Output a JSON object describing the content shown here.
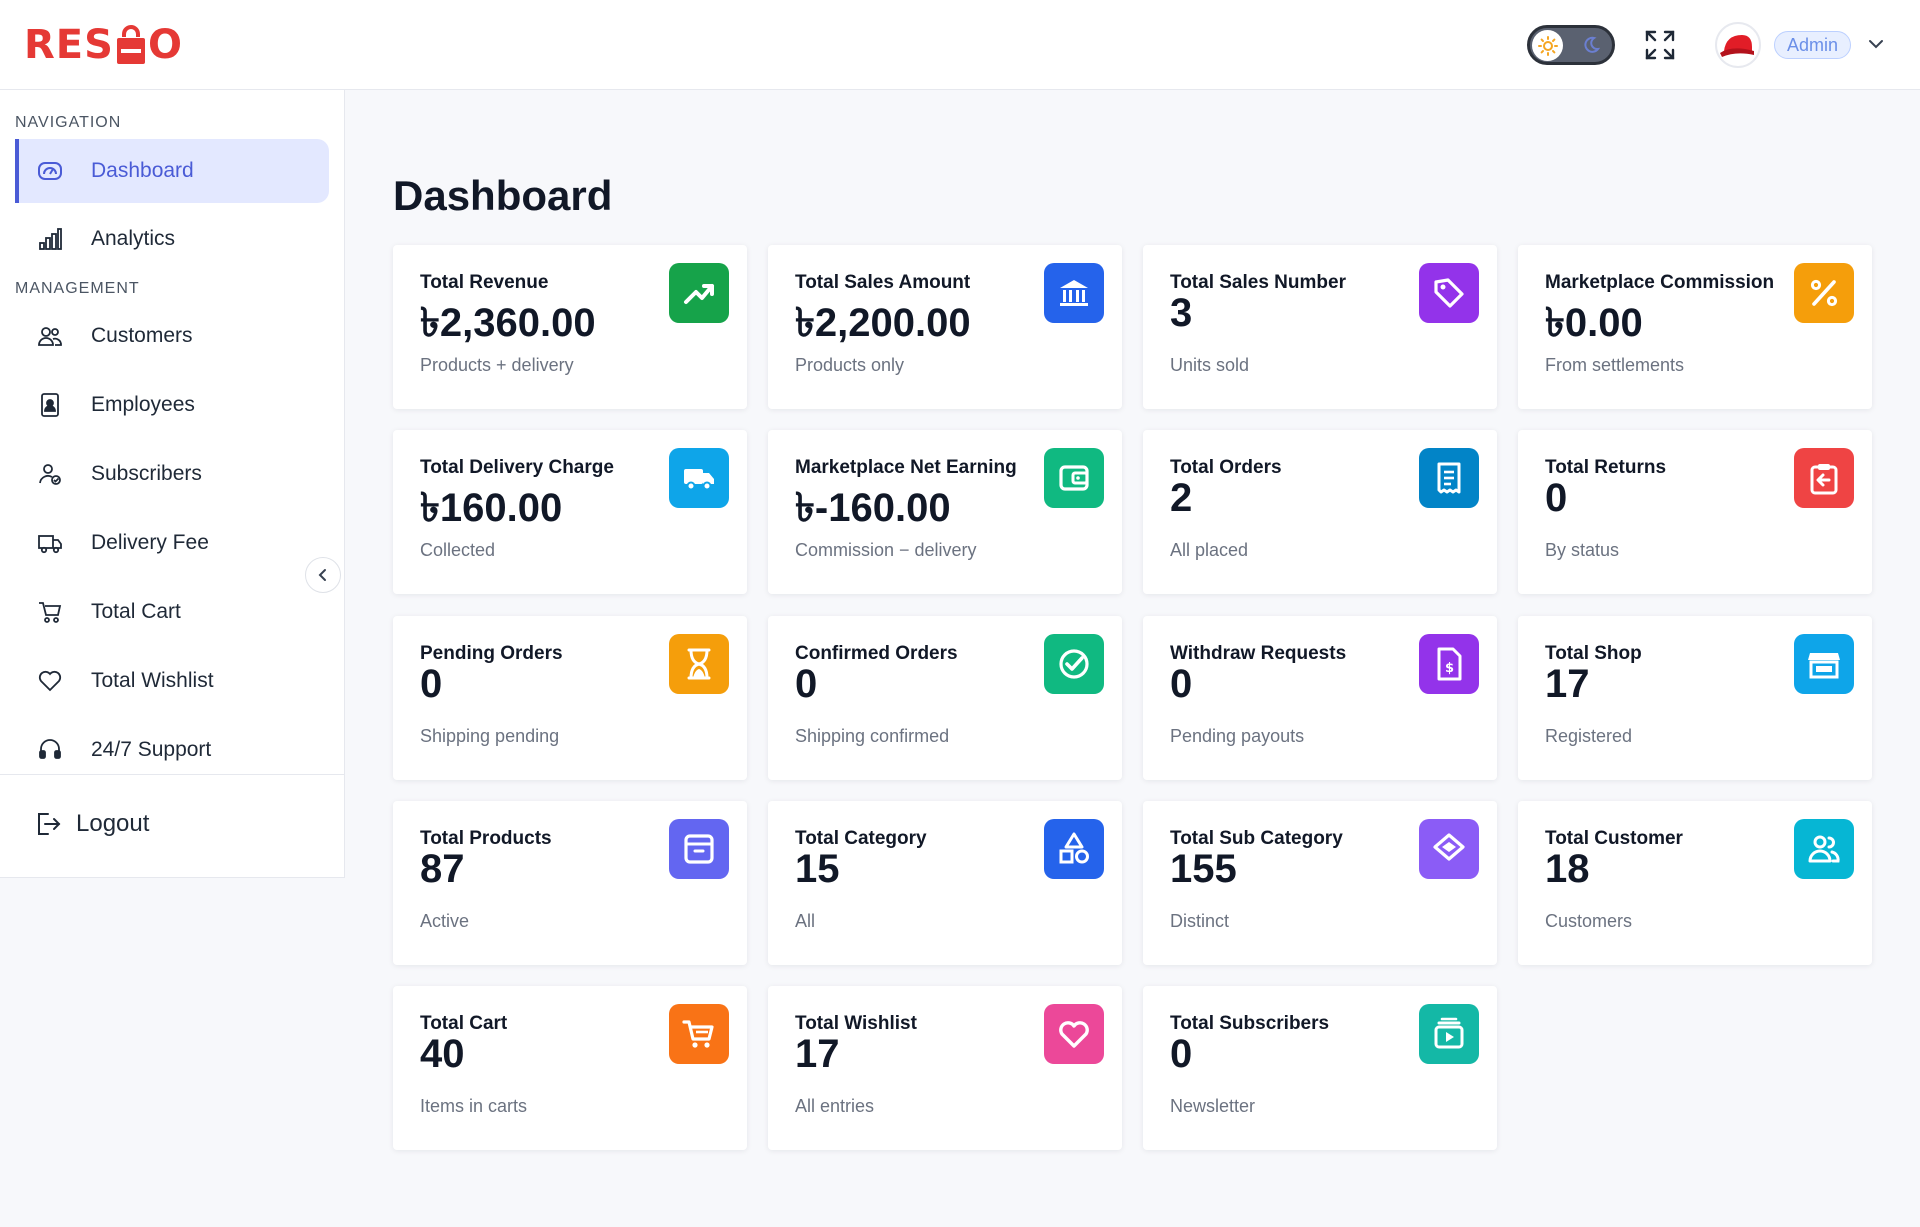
{
  "brand": {
    "name_left": "RES",
    "name_right": "O"
  },
  "header": {
    "user_role": "Admin"
  },
  "sidebar": {
    "nav_title": "NAVIGATION",
    "mgmt_title": "MANAGEMENT",
    "nav_items": [
      {
        "label": "Dashboard",
        "icon": "dashboard-icon"
      },
      {
        "label": "Analytics",
        "icon": "analytics-icon"
      }
    ],
    "mgmt_items": [
      {
        "label": "Customers",
        "icon": "customers-icon"
      },
      {
        "label": "Employees",
        "icon": "employees-icon"
      },
      {
        "label": "Subscribers",
        "icon": "subscribers-icon"
      },
      {
        "label": "Delivery Fee",
        "icon": "delivery-truck-icon"
      },
      {
        "label": "Total Cart",
        "icon": "cart-icon"
      },
      {
        "label": "Total Wishlist",
        "icon": "heart-icon"
      },
      {
        "label": "24/7 Support",
        "icon": "headset-icon"
      }
    ],
    "logout_label": "Logout"
  },
  "main": {
    "title": "Dashboard",
    "cards": [
      {
        "title": "Total Revenue",
        "value": "৳2,360.00",
        "sub": "Products + delivery",
        "icon": "trending-up-icon",
        "color": "#16a34a"
      },
      {
        "title": "Total Sales Amount",
        "value": "৳2,200.00",
        "sub": "Products only",
        "icon": "bank-icon",
        "color": "#2563eb"
      },
      {
        "title": "Total Sales Number",
        "value": "3",
        "sub": "Units sold",
        "icon": "tag-icon",
        "color": "#9333ea"
      },
      {
        "title": "Marketplace Commission",
        "value": "৳0.00",
        "sub": "From settlements",
        "icon": "percent-icon",
        "color": "#f59e0b"
      },
      {
        "title": "Total Delivery Charge",
        "value": "৳160.00",
        "sub": "Collected",
        "icon": "truck-icon",
        "color": "#0ea5e9"
      },
      {
        "title": "Marketplace Net Earning",
        "value": "৳-160.00",
        "sub": "Commission − delivery",
        "icon": "wallet-icon",
        "color": "#10b981"
      },
      {
        "title": "Total Orders",
        "value": "2",
        "sub": "All placed",
        "icon": "receipt-icon",
        "color": "#0284c7"
      },
      {
        "title": "Total Returns",
        "value": "0",
        "sub": "By status",
        "icon": "return-icon",
        "color": "#ef4444"
      },
      {
        "title": "Pending Orders",
        "value": "0",
        "sub": "Shipping pending",
        "icon": "hourglass-icon",
        "color": "#f59e0b"
      },
      {
        "title": "Confirmed Orders",
        "value": "0",
        "sub": "Shipping confirmed",
        "icon": "check-circle-icon",
        "color": "#10b981"
      },
      {
        "title": "Withdraw Requests",
        "value": "0",
        "sub": "Pending payouts",
        "icon": "invoice-icon",
        "color": "#9333ea"
      },
      {
        "title": "Total Shop",
        "value": "17",
        "sub": "Registered",
        "icon": "store-icon",
        "color": "#0ea5e9"
      },
      {
        "title": "Total Products",
        "value": "87",
        "sub": "Active",
        "icon": "archive-icon",
        "color": "#6366f1"
      },
      {
        "title": "Total Category",
        "value": "15",
        "sub": "All",
        "icon": "shapes-icon",
        "color": "#2563eb"
      },
      {
        "title": "Total Sub Category",
        "value": "155",
        "sub": "Distinct",
        "icon": "layers-icon",
        "color": "#8b5cf6"
      },
      {
        "title": "Total Customer",
        "value": "18",
        "sub": "Customers",
        "icon": "users-icon",
        "color": "#06b6d4"
      },
      {
        "title": "Total Cart",
        "value": "40",
        "sub": "Items in carts",
        "icon": "shopping-cart-icon",
        "color": "#f97316"
      },
      {
        "title": "Total Wishlist",
        "value": "17",
        "sub": "All entries",
        "icon": "heart-icon",
        "color": "#ec4899"
      },
      {
        "title": "Total Subscribers",
        "value": "0",
        "sub": "Newsletter",
        "icon": "subscription-icon",
        "color": "#14b8a6"
      }
    ]
  }
}
